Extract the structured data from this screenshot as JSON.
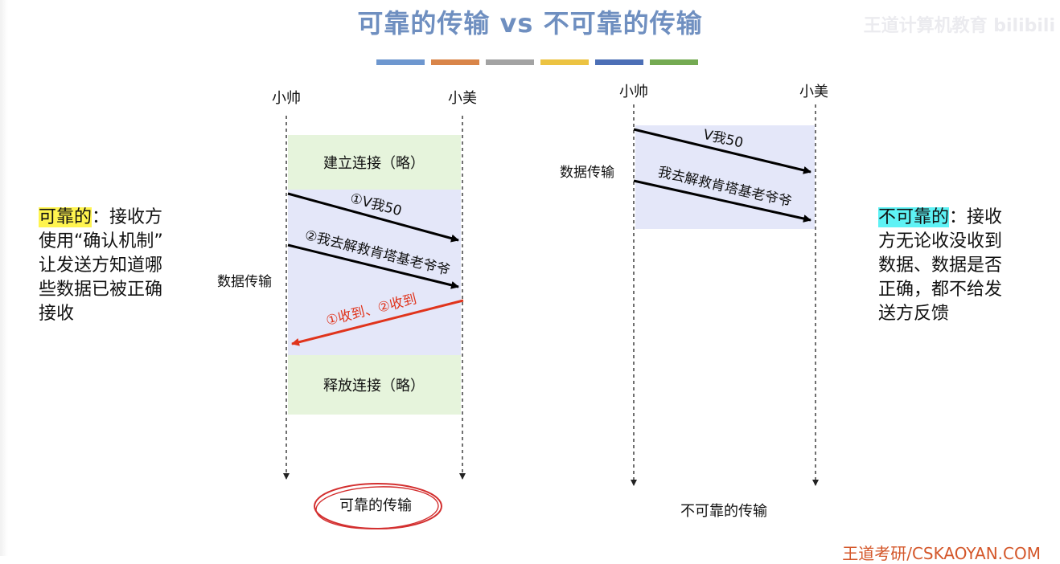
{
  "title": "可靠的传输 vs 不可靠的传输",
  "watermark": "王道计算机教育 bilibili",
  "footer": "王道考研/CSKAOYAN.COM",
  "accent_colors": [
    "#6e97cf",
    "#d98549",
    "#a3a3a3",
    "#ecc342",
    "#4c6fb6",
    "#74aa52"
  ],
  "left_note": {
    "term": "可靠的",
    "lines": [
      "：接收方",
      "使用“确认机制”",
      "让发送方知道哪",
      "些数据已被正确",
      "接收"
    ]
  },
  "right_note": {
    "term": "不可靠的",
    "lines": [
      "：接收",
      "方无论收没收到",
      "数据、数据是否",
      "正确，都不给发",
      "送方反馈"
    ]
  },
  "reliable_diagram": {
    "sender": "小帅",
    "receiver": "小美",
    "establish": "建立连接（略）",
    "phase_label": "数据传输",
    "msg1": "①V我50",
    "msg2": "②我去解救肯塔基老爷爷",
    "ack": "①收到、②收到",
    "release": "释放连接（略）",
    "caption": "可靠的传输"
  },
  "unreliable_diagram": {
    "sender": "小帅",
    "receiver": "小美",
    "phase_label": "数据传输",
    "msg1": "V我50",
    "msg2": "我去解救肯塔基老爷爷",
    "caption": "不可靠的传输"
  }
}
